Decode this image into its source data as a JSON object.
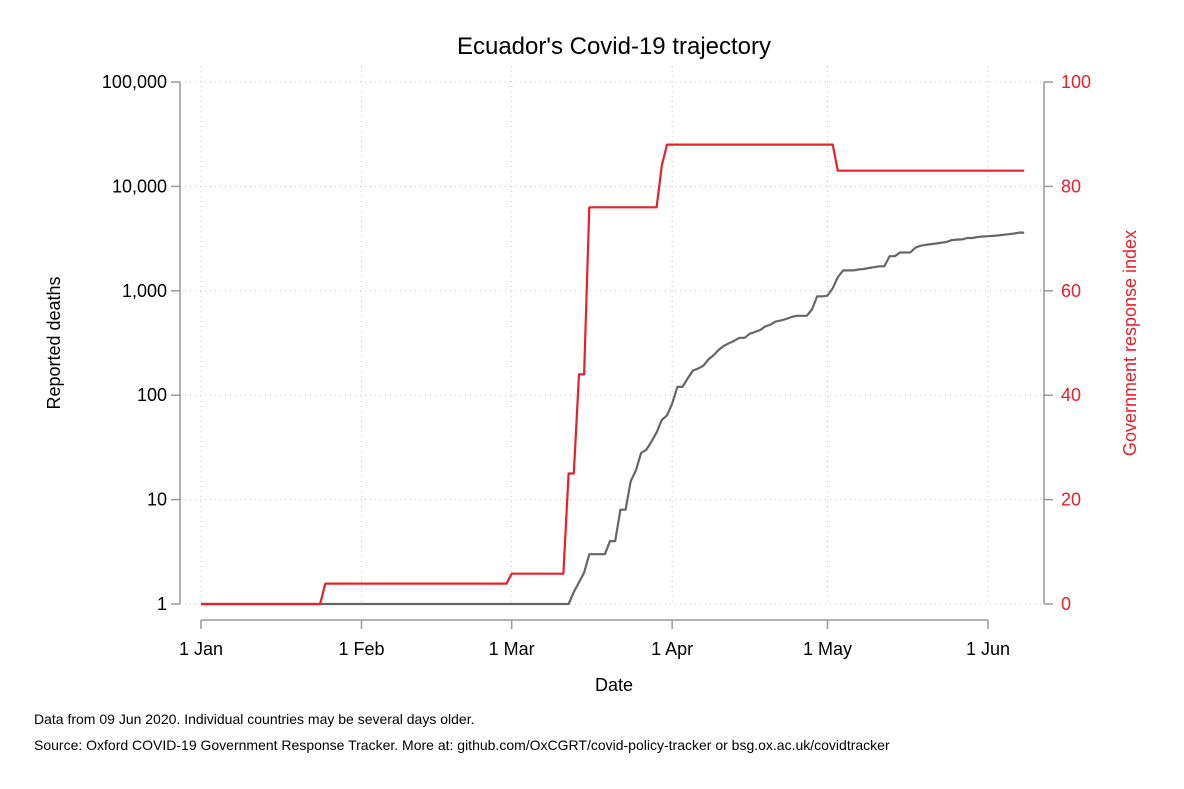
{
  "notes": [
    "Data from 09 Jun 2020. Individual countries may be several days older.",
    "Source: Oxford COVID-19 Government Response Tracker. More at: github.com/OxCGRT/covid-policy-tracker or bsg.ox.ac.uk/covidtracker"
  ],
  "chart_data": {
    "type": "line",
    "title": "Ecuador's Covid-19 trajectory",
    "xlabel": "Date",
    "ylabel": "Reported deaths",
    "y2label": "Government response index",
    "x_ticks": [
      {
        "date": "2020-01-01",
        "label": "1 Jan"
      },
      {
        "date": "2020-02-01",
        "label": "1 Feb"
      },
      {
        "date": "2020-03-01",
        "label": "1 Mar"
      },
      {
        "date": "2020-04-01",
        "label": "1 Apr"
      },
      {
        "date": "2020-05-01",
        "label": "1 May"
      },
      {
        "date": "2020-06-01",
        "label": "1 Jun"
      }
    ],
    "xlim": [
      "2020-01-01",
      "2020-06-08"
    ],
    "y_scale": "log",
    "ylim": [
      1,
      100000
    ],
    "y_ticks": [
      {
        "value": 1,
        "label": "1"
      },
      {
        "value": 10,
        "label": "10"
      },
      {
        "value": 100,
        "label": "100"
      },
      {
        "value": 1000,
        "label": "1,000"
      },
      {
        "value": 10000,
        "label": "10,000"
      },
      {
        "value": 100000,
        "label": "100,000"
      }
    ],
    "y2lim": [
      0,
      100
    ],
    "y2_ticks": [
      {
        "value": 0,
        "label": "0"
      },
      {
        "value": 20,
        "label": "20"
      },
      {
        "value": 40,
        "label": "40"
      },
      {
        "value": 60,
        "label": "60"
      },
      {
        "value": 80,
        "label": "80"
      },
      {
        "value": 100,
        "label": "100"
      }
    ],
    "grid": true,
    "colors": {
      "deaths": "#666666",
      "response": "#e8202a",
      "axis": "#999999"
    },
    "series": [
      {
        "axis": "left",
        "color": "#666666",
        "points": [
          [
            "2020-01-01",
            1
          ],
          [
            "2020-03-12",
            1
          ],
          [
            "2020-03-13",
            1.3
          ],
          [
            "2020-03-15",
            2
          ],
          [
            "2020-03-16",
            3
          ],
          [
            "2020-03-18",
            3
          ],
          [
            "2020-03-19",
            3
          ],
          [
            "2020-03-20",
            4
          ],
          [
            "2020-03-21",
            4
          ],
          [
            "2020-03-22",
            8
          ],
          [
            "2020-03-23",
            8
          ],
          [
            "2020-03-24",
            15
          ],
          [
            "2020-03-25",
            19
          ],
          [
            "2020-03-26",
            28
          ],
          [
            "2020-03-27",
            30
          ],
          [
            "2020-03-28",
            36
          ],
          [
            "2020-03-29",
            44
          ],
          [
            "2020-03-30",
            58
          ],
          [
            "2020-03-31",
            64
          ],
          [
            "2020-04-01",
            83
          ],
          [
            "2020-04-02",
            120
          ],
          [
            "2020-04-03",
            120
          ],
          [
            "2020-04-04",
            145
          ],
          [
            "2020-04-05",
            172
          ],
          [
            "2020-04-06",
            180
          ],
          [
            "2020-04-07",
            191
          ],
          [
            "2020-04-08",
            220
          ],
          [
            "2020-04-09",
            242
          ],
          [
            "2020-04-10",
            272
          ],
          [
            "2020-04-11",
            297
          ],
          [
            "2020-04-12",
            315
          ],
          [
            "2020-04-13",
            333
          ],
          [
            "2020-04-14",
            355
          ],
          [
            "2020-04-15",
            355
          ],
          [
            "2020-04-16",
            388
          ],
          [
            "2020-04-17",
            403
          ],
          [
            "2020-04-18",
            421
          ],
          [
            "2020-04-19",
            456
          ],
          [
            "2020-04-20",
            474
          ],
          [
            "2020-04-21",
            507
          ],
          [
            "2020-04-22",
            520
          ],
          [
            "2020-04-23",
            537
          ],
          [
            "2020-04-24",
            560
          ],
          [
            "2020-04-25",
            576
          ],
          [
            "2020-04-26",
            576
          ],
          [
            "2020-04-27",
            576
          ],
          [
            "2020-04-28",
            663
          ],
          [
            "2020-04-29",
            883
          ],
          [
            "2020-04-30",
            883
          ],
          [
            "2020-05-01",
            900
          ],
          [
            "2020-05-02",
            1060
          ],
          [
            "2020-05-03",
            1350
          ],
          [
            "2020-05-04",
            1564
          ],
          [
            "2020-05-05",
            1569
          ],
          [
            "2020-05-06",
            1569
          ],
          [
            "2020-05-07",
            1600
          ],
          [
            "2020-05-08",
            1618
          ],
          [
            "2020-05-09",
            1654
          ],
          [
            "2020-05-10",
            1684
          ],
          [
            "2020-05-11",
            1717
          ],
          [
            "2020-05-12",
            1717
          ],
          [
            "2020-05-13",
            2145
          ],
          [
            "2020-05-14",
            2145
          ],
          [
            "2020-05-15",
            2327
          ],
          [
            "2020-05-16",
            2327
          ],
          [
            "2020-05-17",
            2334
          ],
          [
            "2020-05-18",
            2594
          ],
          [
            "2020-05-19",
            2704
          ],
          [
            "2020-05-20",
            2760
          ],
          [
            "2020-05-21",
            2800
          ],
          [
            "2020-05-22",
            2839
          ],
          [
            "2020-05-23",
            2888
          ],
          [
            "2020-05-24",
            2939
          ],
          [
            "2020-05-25",
            3056
          ],
          [
            "2020-05-26",
            3096
          ],
          [
            "2020-05-27",
            3108
          ],
          [
            "2020-05-28",
            3203
          ],
          [
            "2020-05-29",
            3203
          ],
          [
            "2020-05-30",
            3275
          ],
          [
            "2020-05-31",
            3313
          ],
          [
            "2020-06-01",
            3334
          ],
          [
            "2020-06-02",
            3358
          ],
          [
            "2020-06-03",
            3394
          ],
          [
            "2020-06-04",
            3438
          ],
          [
            "2020-06-05",
            3486
          ],
          [
            "2020-06-06",
            3534
          ],
          [
            "2020-06-07",
            3608
          ],
          [
            "2020-06-08",
            3608
          ]
        ]
      },
      {
        "axis": "right",
        "color": "#e8202a",
        "points": [
          [
            "2020-01-01",
            0
          ],
          [
            "2020-01-24",
            0
          ],
          [
            "2020-01-25",
            3.9
          ],
          [
            "2020-02-29",
            3.9
          ],
          [
            "2020-03-01",
            5.8
          ],
          [
            "2020-03-11",
            5.8
          ],
          [
            "2020-03-12",
            25
          ],
          [
            "2020-03-13",
            25
          ],
          [
            "2020-03-14",
            44
          ],
          [
            "2020-03-15",
            44
          ],
          [
            "2020-03-16",
            76
          ],
          [
            "2020-03-29",
            76
          ],
          [
            "2020-03-30",
            84
          ],
          [
            "2020-03-31",
            88
          ],
          [
            "2020-05-02",
            88
          ],
          [
            "2020-05-03",
            83
          ],
          [
            "2020-06-08",
            83
          ]
        ]
      }
    ]
  }
}
